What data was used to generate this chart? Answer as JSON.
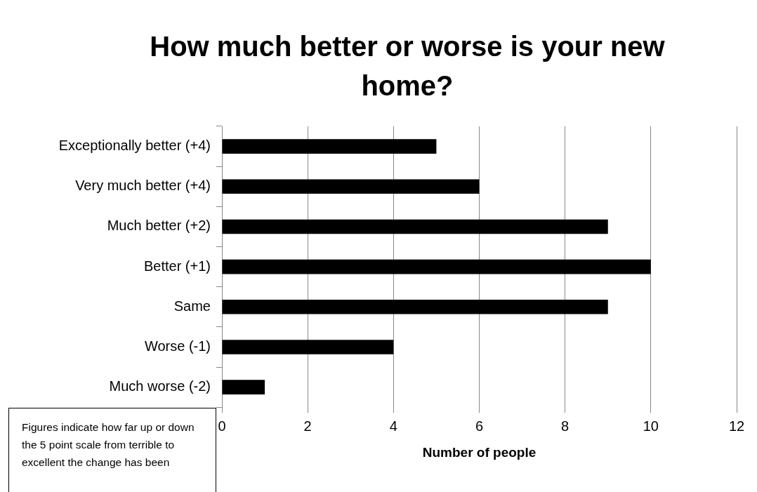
{
  "chart_data": {
    "type": "bar",
    "orientation": "horizontal",
    "title": "How much better or worse is your new home?",
    "xlabel": "Number of people",
    "categories": [
      "Exceptionally better (+4)",
      "Very much better (+4)",
      "Much better (+2)",
      "Better (+1)",
      "Same",
      "Worse (-1)",
      "Much worse (-2)"
    ],
    "values": [
      5,
      6,
      9,
      10,
      9,
      4,
      1
    ],
    "color": "#000000",
    "xlim": [
      0,
      12
    ],
    "xticks": [
      0,
      2,
      4,
      6,
      8,
      10,
      12
    ],
    "grid": "x",
    "legend": false,
    "annotations": [
      "Figures indicate how far up or down the 5 point scale from terrible to excellent the change has been"
    ]
  }
}
